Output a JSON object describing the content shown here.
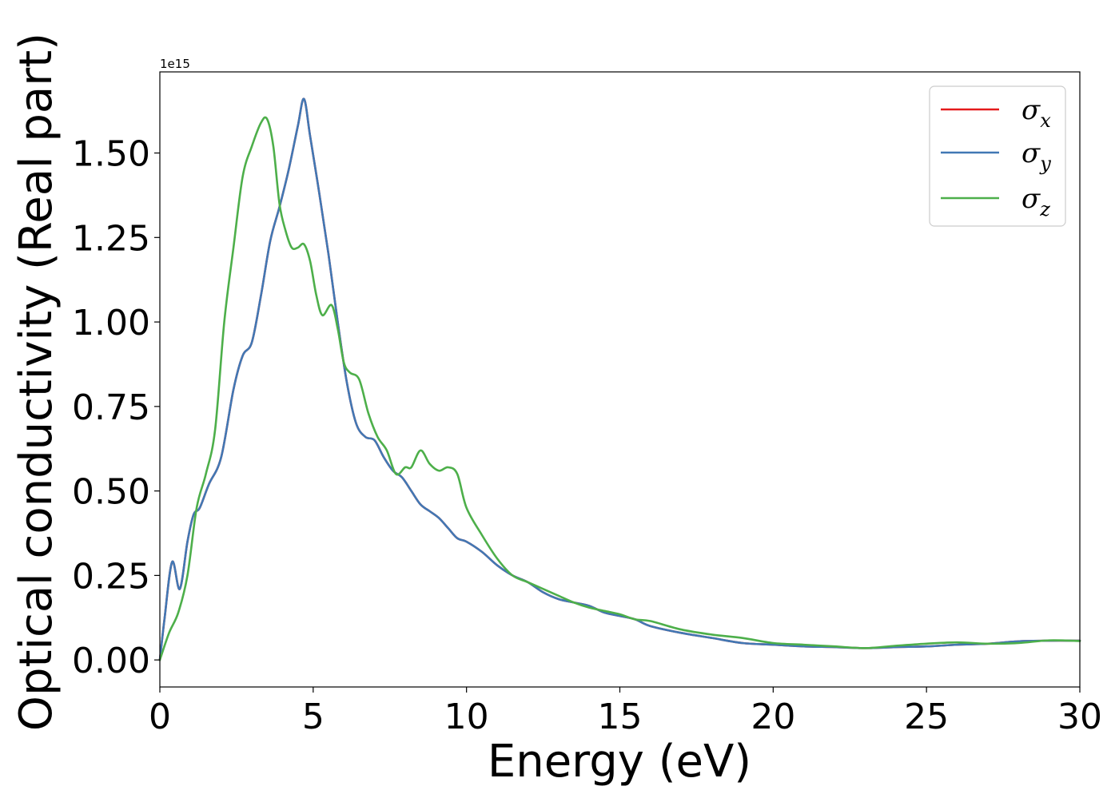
{
  "chart_data": {
    "type": "line",
    "xlabel": "Energy (eV)",
    "ylabel": "Optical conductivity (Real part)",
    "y_offset_text": "1e15",
    "y_scale": 1000000000000000.0,
    "xlim": [
      0,
      30
    ],
    "ylim": [
      -0.08,
      1.74
    ],
    "x_ticks": [
      0,
      5,
      10,
      15,
      20,
      25,
      30
    ],
    "x_tick_labels": [
      "0",
      "5",
      "10",
      "15",
      "20",
      "25",
      "30"
    ],
    "y_ticks": [
      0.0,
      0.25,
      0.5,
      0.75,
      1.0,
      1.25,
      1.5
    ],
    "y_tick_labels": [
      "0.00",
      "0.25",
      "0.50",
      "0.75",
      "1.00",
      "1.25",
      "1.50"
    ],
    "grid": false,
    "legend_position": "top-right",
    "series": [
      {
        "name": "σx",
        "symbol": "σ",
        "subscript": "x",
        "color": "#e41a1c",
        "x": [
          0,
          0.15,
          0.4,
          0.65,
          0.9,
          1.1,
          1.3,
          1.6,
          2.0,
          2.4,
          2.7,
          3.0,
          3.3,
          3.6,
          3.9,
          4.2,
          4.5,
          4.7,
          4.9,
          5.2,
          5.5,
          5.8,
          6.1,
          6.4,
          6.7,
          7.0,
          7.3,
          7.6,
          7.9,
          8.2,
          8.5,
          8.8,
          9.1,
          9.4,
          9.7,
          10.0,
          10.5,
          11.0,
          11.5,
          12.0,
          12.5,
          13.0,
          13.5,
          14.0,
          14.5,
          15.0,
          15.5,
          16.0,
          17.0,
          18.0,
          19.0,
          20.0,
          21.0,
          22.0,
          23.0,
          24.0,
          25.0,
          26.0,
          27.0,
          28.0,
          29.0,
          30.0
        ],
        "y": [
          0.0,
          0.12,
          0.29,
          0.21,
          0.35,
          0.43,
          0.45,
          0.52,
          0.6,
          0.8,
          0.9,
          0.94,
          1.08,
          1.24,
          1.34,
          1.45,
          1.58,
          1.66,
          1.55,
          1.38,
          1.2,
          1.0,
          0.82,
          0.7,
          0.66,
          0.65,
          0.6,
          0.56,
          0.54,
          0.5,
          0.46,
          0.44,
          0.42,
          0.39,
          0.36,
          0.35,
          0.32,
          0.28,
          0.25,
          0.23,
          0.2,
          0.18,
          0.17,
          0.16,
          0.14,
          0.13,
          0.12,
          0.1,
          0.08,
          0.065,
          0.05,
          0.045,
          0.04,
          0.038,
          0.035,
          0.038,
          0.04,
          0.045,
          0.048,
          0.055,
          0.057,
          0.057
        ]
      },
      {
        "name": "σy",
        "symbol": "σ",
        "subscript": "y",
        "color": "#4178b4",
        "x": [
          0,
          0.15,
          0.4,
          0.65,
          0.9,
          1.1,
          1.3,
          1.6,
          2.0,
          2.4,
          2.7,
          3.0,
          3.3,
          3.6,
          3.9,
          4.2,
          4.5,
          4.7,
          4.9,
          5.2,
          5.5,
          5.8,
          6.1,
          6.4,
          6.7,
          7.0,
          7.3,
          7.6,
          7.9,
          8.2,
          8.5,
          8.8,
          9.1,
          9.4,
          9.7,
          10.0,
          10.5,
          11.0,
          11.5,
          12.0,
          12.5,
          13.0,
          13.5,
          14.0,
          14.5,
          15.0,
          15.5,
          16.0,
          17.0,
          18.0,
          19.0,
          20.0,
          21.0,
          22.0,
          23.0,
          24.0,
          25.0,
          26.0,
          27.0,
          28.0,
          29.0,
          30.0
        ],
        "y": [
          0.0,
          0.12,
          0.29,
          0.21,
          0.35,
          0.43,
          0.45,
          0.52,
          0.6,
          0.8,
          0.9,
          0.94,
          1.08,
          1.24,
          1.34,
          1.45,
          1.58,
          1.66,
          1.55,
          1.38,
          1.2,
          1.0,
          0.82,
          0.7,
          0.66,
          0.65,
          0.6,
          0.56,
          0.54,
          0.5,
          0.46,
          0.44,
          0.42,
          0.39,
          0.36,
          0.35,
          0.32,
          0.28,
          0.25,
          0.23,
          0.2,
          0.18,
          0.17,
          0.16,
          0.14,
          0.13,
          0.12,
          0.1,
          0.08,
          0.065,
          0.05,
          0.045,
          0.04,
          0.038,
          0.035,
          0.038,
          0.04,
          0.045,
          0.048,
          0.055,
          0.057,
          0.057
        ]
      },
      {
        "name": "σz",
        "symbol": "σ",
        "subscript": "z",
        "color": "#4daf4a",
        "x": [
          0,
          0.3,
          0.6,
          0.9,
          1.2,
          1.5,
          1.8,
          2.1,
          2.4,
          2.7,
          3.0,
          3.3,
          3.5,
          3.7,
          3.9,
          4.1,
          4.3,
          4.5,
          4.7,
          4.9,
          5.1,
          5.3,
          5.6,
          5.8,
          6.0,
          6.2,
          6.5,
          6.8,
          7.1,
          7.4,
          7.7,
          8.0,
          8.2,
          8.5,
          8.8,
          9.1,
          9.4,
          9.7,
          10.0,
          10.5,
          11.0,
          11.5,
          12.0,
          12.5,
          13.0,
          13.5,
          14.0,
          14.5,
          15.0,
          15.5,
          16.0,
          17.0,
          18.0,
          19.0,
          20.0,
          21.0,
          22.0,
          23.0,
          24.0,
          25.0,
          26.0,
          27.0,
          28.0,
          29.0,
          30.0
        ],
        "y": [
          0.0,
          0.08,
          0.14,
          0.25,
          0.45,
          0.55,
          0.68,
          1.0,
          1.22,
          1.43,
          1.52,
          1.59,
          1.6,
          1.52,
          1.35,
          1.27,
          1.22,
          1.22,
          1.23,
          1.18,
          1.08,
          1.02,
          1.05,
          0.98,
          0.88,
          0.85,
          0.83,
          0.73,
          0.66,
          0.62,
          0.55,
          0.57,
          0.57,
          0.62,
          0.58,
          0.56,
          0.57,
          0.55,
          0.45,
          0.37,
          0.3,
          0.25,
          0.23,
          0.21,
          0.19,
          0.17,
          0.155,
          0.145,
          0.135,
          0.12,
          0.115,
          0.09,
          0.075,
          0.065,
          0.05,
          0.045,
          0.04,
          0.035,
          0.042,
          0.048,
          0.052,
          0.048,
          0.05,
          0.058,
          0.056
        ]
      }
    ]
  }
}
